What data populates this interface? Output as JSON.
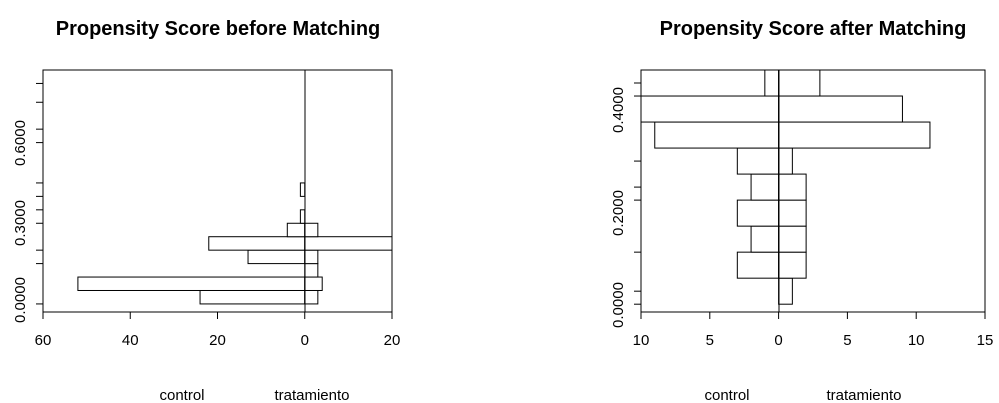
{
  "chart_data": [
    {
      "type": "bar",
      "orientation": "horizontal-back-to-back",
      "title": "Propensity Score before Matching",
      "xlabel": "",
      "ylabel": "",
      "x_tick_labels": [
        "60",
        "40",
        "20",
        "0",
        "20"
      ],
      "y_tick_labels": [
        "0.0000",
        "0.3000",
        "0.3000",
        "0.6000",
        "0.6000"
      ],
      "left_label": "control",
      "right_label": "tratamiento",
      "xlim": [
        -60,
        20
      ],
      "ylim": [
        -0.03,
        0.87
      ],
      "bins": [
        {
          "from": 0.0,
          "to": 0.05,
          "control": 24,
          "tratamiento": 3
        },
        {
          "from": 0.05,
          "to": 0.1,
          "control": 52,
          "tratamiento": 4
        },
        {
          "from": 0.1,
          "to": 0.15,
          "control": 0,
          "tratamiento": 3
        },
        {
          "from": 0.15,
          "to": 0.2,
          "control": 13,
          "tratamiento": 3
        },
        {
          "from": 0.2,
          "to": 0.25,
          "control": 22,
          "tratamiento": 20
        },
        {
          "from": 0.25,
          "to": 0.3,
          "control": 4,
          "tratamiento": 3
        },
        {
          "from": 0.3,
          "to": 0.35,
          "control": 1,
          "tratamiento": 0
        },
        {
          "from": 0.35,
          "to": 0.4,
          "control": 0,
          "tratamiento": 0
        },
        {
          "from": 0.4,
          "to": 0.45,
          "control": 1,
          "tratamiento": 0
        }
      ],
      "grid": false,
      "legend": "none"
    },
    {
      "type": "bar",
      "orientation": "horizontal-back-to-back",
      "title": "Propensity Score after Matching",
      "xlabel": "",
      "ylabel": "",
      "x_tick_labels": [
        "10",
        "5",
        "0",
        "5",
        "10",
        "15"
      ],
      "y_tick_labels": [
        "0.0000",
        "0.2000",
        "0.2000",
        "0.4000",
        "0.4000"
      ],
      "left_label": "control",
      "right_label": "tratamiento",
      "xlim": [
        -10,
        15
      ],
      "ylim": [
        -0.015,
        0.45
      ],
      "bins": [
        {
          "from": 0.0,
          "to": 0.05,
          "control": 0,
          "tratamiento": 1
        },
        {
          "from": 0.05,
          "to": 0.1,
          "control": 3,
          "tratamiento": 2
        },
        {
          "from": 0.1,
          "to": 0.15,
          "control": 2,
          "tratamiento": 2
        },
        {
          "from": 0.15,
          "to": 0.2,
          "control": 3,
          "tratamiento": 2
        },
        {
          "from": 0.2,
          "to": 0.25,
          "control": 2,
          "tratamiento": 2
        },
        {
          "from": 0.25,
          "to": 0.3,
          "control": 3,
          "tratamiento": 1
        },
        {
          "from": 0.3,
          "to": 0.35,
          "control": 9,
          "tratamiento": 11
        },
        {
          "from": 0.35,
          "to": 0.4,
          "control": 10,
          "tratamiento": 9
        },
        {
          "from": 0.4,
          "to": 0.45,
          "control": 1,
          "tratamiento": 3
        }
      ],
      "grid": false,
      "legend": "none"
    }
  ]
}
